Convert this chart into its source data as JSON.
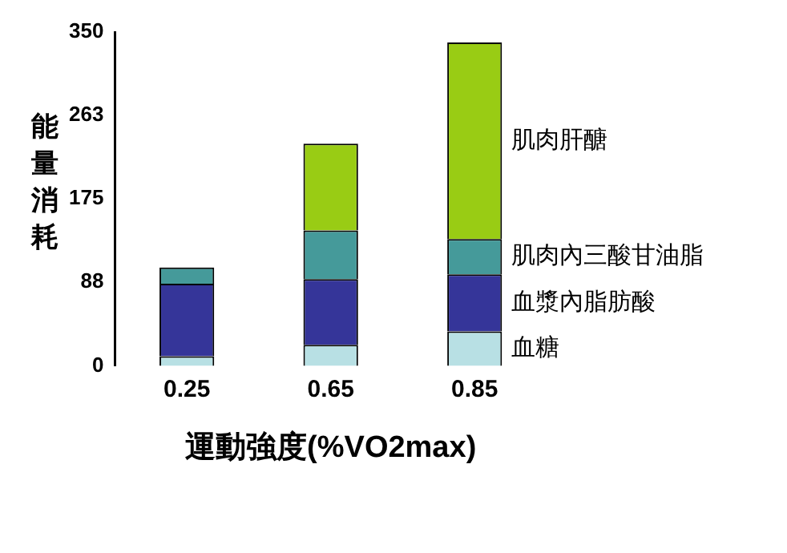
{
  "chart_data": {
    "type": "bar",
    "stacked": true,
    "xlabel": "運動強度(%VO2max)",
    "ylabel": "能量消耗",
    "categories": [
      "0.25",
      "0.65",
      "0.85"
    ],
    "series": [
      {
        "name": "血糖",
        "color": "#b8e0e4",
        "values": [
          10,
          22,
          36
        ]
      },
      {
        "name": "血漿內脂肪酸",
        "color": "#353599",
        "values": [
          76,
          69,
          60
        ]
      },
      {
        "name": "肌肉內三酸甘油脂",
        "color": "#459a9a",
        "values": [
          17,
          51,
          37
        ]
      },
      {
        "name": "肌肉肝醣",
        "color": "#99cc14",
        "values": [
          0,
          91,
          206
        ]
      }
    ],
    "ylim": [
      0,
      350
    ],
    "yticks": [
      0,
      88,
      175,
      263,
      350
    ],
    "grid": false,
    "legend": "right"
  }
}
